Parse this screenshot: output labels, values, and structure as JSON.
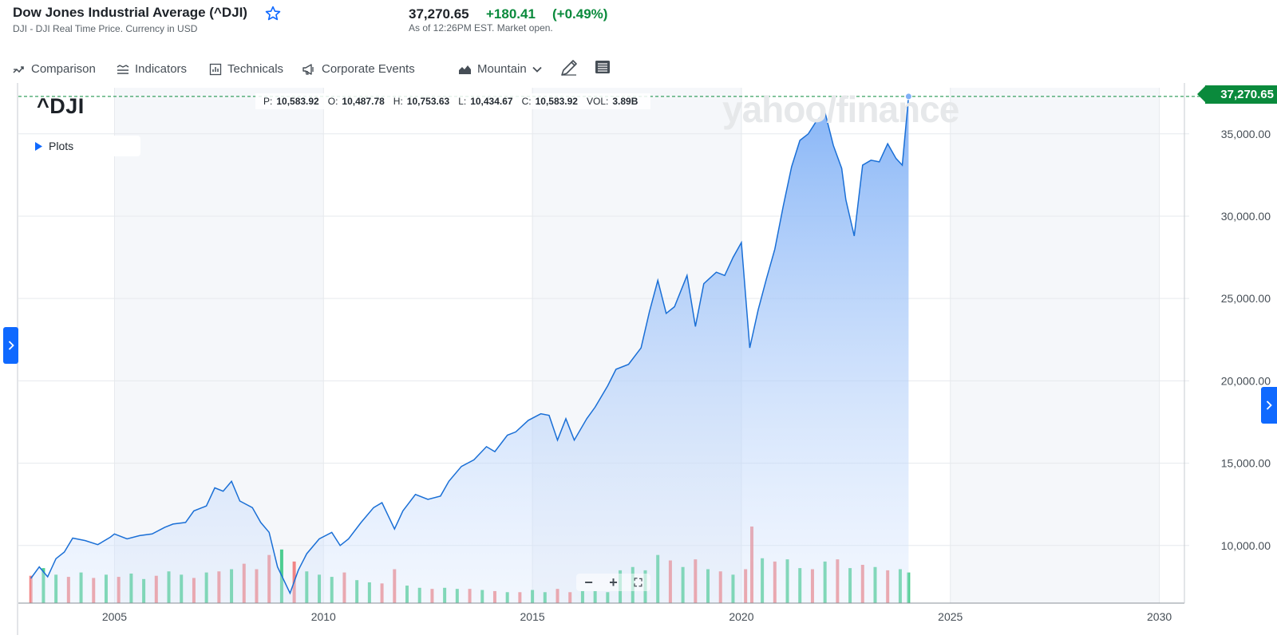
{
  "header": {
    "title": "Dow Jones Industrial Average (^DJI)",
    "subtitle": "DJI - DJI Real Time Price. Currency in USD",
    "price": "37,270.65",
    "change": "+180.41",
    "change_pct": "(+0.49%)",
    "as_of": "As of 12:26PM EST. Market open."
  },
  "toolbar": {
    "comparison": "Comparison",
    "indicators": "Indicators",
    "technicals": "Technicals",
    "corporate_events": "Corporate Events",
    "chart_type": "Mountain"
  },
  "chart_panel": {
    "symbol": "^DJI",
    "plots_label": "Plots",
    "watermark": "yahoo/finance",
    "last_price_tag": "37,270.65",
    "ohlc": {
      "p_label": "P:",
      "p": "10,583.92",
      "o_label": "O:",
      "o": "10,487.78",
      "h_label": "H:",
      "h": "10,753.63",
      "l_label": "L:",
      "l": "10,434.67",
      "c_label": "C:",
      "c": "10,583.92",
      "vol_label": "VOL:",
      "vol": "3.89B"
    },
    "zoom": {
      "minus": "−",
      "plus": "+",
      "fit": "⛶"
    }
  },
  "colors": {
    "line": "#1a6fd6",
    "fill_top": "#7fb0f6",
    "volume_up": "#2fc67c",
    "volume_down": "#f07070",
    "accent_green": "#0a8a3c",
    "accent_blue": "#0f69ff"
  },
  "chart_data": {
    "type": "area",
    "title": "^DJI",
    "series": [
      {
        "values": [
          [
            2003.0,
            8000
          ],
          [
            2003.2,
            8700
          ],
          [
            2003.4,
            8100
          ],
          [
            2003.6,
            9200
          ],
          [
            2003.8,
            9600
          ],
          [
            2004.0,
            10450
          ],
          [
            2004.3,
            10300
          ],
          [
            2004.6,
            10050
          ],
          [
            2004.9,
            10500
          ],
          [
            2005.0,
            10700
          ],
          [
            2005.3,
            10400
          ],
          [
            2005.6,
            10600
          ],
          [
            2005.9,
            10700
          ],
          [
            2006.2,
            11100
          ],
          [
            2006.4,
            11300
          ],
          [
            2006.7,
            11400
          ],
          [
            2006.9,
            12100
          ],
          [
            2007.2,
            12400
          ],
          [
            2007.4,
            13500
          ],
          [
            2007.6,
            13300
          ],
          [
            2007.8,
            13900
          ],
          [
            2008.0,
            12700
          ],
          [
            2008.3,
            12300
          ],
          [
            2008.5,
            11400
          ],
          [
            2008.7,
            10800
          ],
          [
            2008.9,
            8700
          ],
          [
            2009.2,
            7100
          ],
          [
            2009.4,
            8500
          ],
          [
            2009.6,
            9500
          ],
          [
            2009.9,
            10400
          ],
          [
            2010.2,
            10800
          ],
          [
            2010.4,
            10000
          ],
          [
            2010.6,
            10400
          ],
          [
            2010.9,
            11400
          ],
          [
            2011.2,
            12300
          ],
          [
            2011.4,
            12600
          ],
          [
            2011.7,
            11000
          ],
          [
            2011.9,
            12100
          ],
          [
            2012.2,
            13100
          ],
          [
            2012.5,
            12800
          ],
          [
            2012.8,
            13000
          ],
          [
            2013.0,
            13900
          ],
          [
            2013.3,
            14800
          ],
          [
            2013.6,
            15200
          ],
          [
            2013.9,
            16000
          ],
          [
            2014.1,
            15700
          ],
          [
            2014.4,
            16700
          ],
          [
            2014.6,
            16900
          ],
          [
            2014.9,
            17600
          ],
          [
            2015.2,
            18000
          ],
          [
            2015.4,
            17900
          ],
          [
            2015.6,
            16400
          ],
          [
            2015.8,
            17700
          ],
          [
            2016.0,
            16400
          ],
          [
            2016.3,
            17700
          ],
          [
            2016.5,
            18400
          ],
          [
            2016.8,
            19700
          ],
          [
            2017.0,
            20700
          ],
          [
            2017.3,
            21000
          ],
          [
            2017.6,
            22000
          ],
          [
            2017.8,
            24200
          ],
          [
            2018.0,
            26100
          ],
          [
            2018.2,
            24100
          ],
          [
            2018.4,
            24500
          ],
          [
            2018.7,
            26400
          ],
          [
            2018.9,
            23300
          ],
          [
            2019.1,
            25900
          ],
          [
            2019.4,
            26600
          ],
          [
            2019.6,
            26400
          ],
          [
            2019.8,
            27500
          ],
          [
            2020.0,
            28400
          ],
          [
            2020.2,
            22000
          ],
          [
            2020.4,
            24300
          ],
          [
            2020.6,
            26200
          ],
          [
            2020.8,
            28000
          ],
          [
            2021.0,
            30600
          ],
          [
            2021.2,
            33000
          ],
          [
            2021.4,
            34600
          ],
          [
            2021.6,
            35000
          ],
          [
            2021.8,
            35800
          ],
          [
            2022.0,
            36300
          ],
          [
            2022.2,
            34300
          ],
          [
            2022.4,
            32900
          ],
          [
            2022.5,
            31000
          ],
          [
            2022.7,
            28800
          ],
          [
            2022.9,
            33100
          ],
          [
            2023.1,
            33400
          ],
          [
            2023.3,
            33300
          ],
          [
            2023.5,
            34400
          ],
          [
            2023.7,
            33500
          ],
          [
            2023.85,
            33100
          ],
          [
            2024.0,
            37270
          ]
        ]
      }
    ],
    "volume": [
      {
        "x": 2003.0,
        "v": 2.5,
        "up": false
      },
      {
        "x": 2003.3,
        "v": 3.2,
        "up": true
      },
      {
        "x": 2003.6,
        "v": 2.6,
        "up": true
      },
      {
        "x": 2003.9,
        "v": 2.4,
        "up": false
      },
      {
        "x": 2004.2,
        "v": 2.8,
        "up": true
      },
      {
        "x": 2004.5,
        "v": 2.3,
        "up": false
      },
      {
        "x": 2004.8,
        "v": 2.6,
        "up": true
      },
      {
        "x": 2005.1,
        "v": 2.4,
        "up": false
      },
      {
        "x": 2005.4,
        "v": 2.7,
        "up": true
      },
      {
        "x": 2005.7,
        "v": 2.2,
        "up": true
      },
      {
        "x": 2006.0,
        "v": 2.5,
        "up": false
      },
      {
        "x": 2006.3,
        "v": 2.9,
        "up": true
      },
      {
        "x": 2006.6,
        "v": 2.6,
        "up": true
      },
      {
        "x": 2006.9,
        "v": 2.3,
        "up": false
      },
      {
        "x": 2007.2,
        "v": 2.8,
        "up": true
      },
      {
        "x": 2007.5,
        "v": 2.9,
        "up": false
      },
      {
        "x": 2007.8,
        "v": 3.1,
        "up": true
      },
      {
        "x": 2008.1,
        "v": 3.6,
        "up": false
      },
      {
        "x": 2008.4,
        "v": 3.1,
        "up": false
      },
      {
        "x": 2008.7,
        "v": 4.4,
        "up": false
      },
      {
        "x": 2009.0,
        "v": 4.9,
        "up": true
      },
      {
        "x": 2009.3,
        "v": 3.8,
        "up": false
      },
      {
        "x": 2009.6,
        "v": 2.9,
        "up": true
      },
      {
        "x": 2009.9,
        "v": 2.6,
        "up": true
      },
      {
        "x": 2010.2,
        "v": 2.4,
        "up": true
      },
      {
        "x": 2010.5,
        "v": 2.8,
        "up": false
      },
      {
        "x": 2010.8,
        "v": 2.1,
        "up": true
      },
      {
        "x": 2011.1,
        "v": 1.9,
        "up": true
      },
      {
        "x": 2011.4,
        "v": 1.8,
        "up": false
      },
      {
        "x": 2011.7,
        "v": 3.1,
        "up": false
      },
      {
        "x": 2012.0,
        "v": 1.6,
        "up": true
      },
      {
        "x": 2012.3,
        "v": 1.4,
        "up": true
      },
      {
        "x": 2012.6,
        "v": 1.3,
        "up": false
      },
      {
        "x": 2012.9,
        "v": 1.4,
        "up": true
      },
      {
        "x": 2013.2,
        "v": 1.3,
        "up": true
      },
      {
        "x": 2013.5,
        "v": 1.3,
        "up": false
      },
      {
        "x": 2013.8,
        "v": 1.2,
        "up": true
      },
      {
        "x": 2014.1,
        "v": 1.1,
        "up": false
      },
      {
        "x": 2014.4,
        "v": 1.0,
        "up": true
      },
      {
        "x": 2014.7,
        "v": 1.0,
        "up": false
      },
      {
        "x": 2015.0,
        "v": 1.2,
        "up": true
      },
      {
        "x": 2015.3,
        "v": 1.0,
        "up": true
      },
      {
        "x": 2015.6,
        "v": 1.3,
        "up": false
      },
      {
        "x": 2015.9,
        "v": 1.0,
        "up": false
      },
      {
        "x": 2016.2,
        "v": 1.1,
        "up": true
      },
      {
        "x": 2016.5,
        "v": 1.1,
        "up": true
      },
      {
        "x": 2016.8,
        "v": 1.0,
        "up": true
      },
      {
        "x": 2017.1,
        "v": 3.0,
        "up": true
      },
      {
        "x": 2017.4,
        "v": 3.3,
        "up": true
      },
      {
        "x": 2017.7,
        "v": 3.0,
        "up": true
      },
      {
        "x": 2018.0,
        "v": 4.4,
        "up": true
      },
      {
        "x": 2018.3,
        "v": 3.9,
        "up": false
      },
      {
        "x": 2018.6,
        "v": 3.3,
        "up": true
      },
      {
        "x": 2018.9,
        "v": 4.0,
        "up": false
      },
      {
        "x": 2019.2,
        "v": 3.1,
        "up": true
      },
      {
        "x": 2019.5,
        "v": 2.9,
        "up": false
      },
      {
        "x": 2019.8,
        "v": 2.6,
        "up": true
      },
      {
        "x": 2020.1,
        "v": 3.1,
        "up": false
      },
      {
        "x": 2020.25,
        "v": 7.0,
        "up": false
      },
      {
        "x": 2020.5,
        "v": 4.1,
        "up": true
      },
      {
        "x": 2020.8,
        "v": 3.8,
        "up": false
      },
      {
        "x": 2021.1,
        "v": 4.0,
        "up": true
      },
      {
        "x": 2021.4,
        "v": 3.2,
        "up": true
      },
      {
        "x": 2021.7,
        "v": 3.1,
        "up": false
      },
      {
        "x": 2022.0,
        "v": 3.8,
        "up": true
      },
      {
        "x": 2022.3,
        "v": 4.0,
        "up": false
      },
      {
        "x": 2022.6,
        "v": 3.2,
        "up": true
      },
      {
        "x": 2022.9,
        "v": 3.5,
        "up": false
      },
      {
        "x": 2023.2,
        "v": 3.3,
        "up": true
      },
      {
        "x": 2023.5,
        "v": 3.0,
        "up": false
      },
      {
        "x": 2023.8,
        "v": 3.1,
        "up": true
      },
      {
        "x": 2024.0,
        "v": 2.8,
        "up": true
      }
    ],
    "x_ticks": [
      "2005",
      "2010",
      "2015",
      "2020",
      "2025",
      "2030"
    ],
    "y_ticks": [
      "35,000.00",
      "30,000.00",
      "25,000.00",
      "20,000.00",
      "15,000.00",
      "10,000.00"
    ],
    "xlim": [
      2002.7,
      2030.6
    ],
    "ylim": [
      6500,
      37800
    ],
    "last_value": 37270.65,
    "grid": true,
    "volume_overlay": true
  }
}
